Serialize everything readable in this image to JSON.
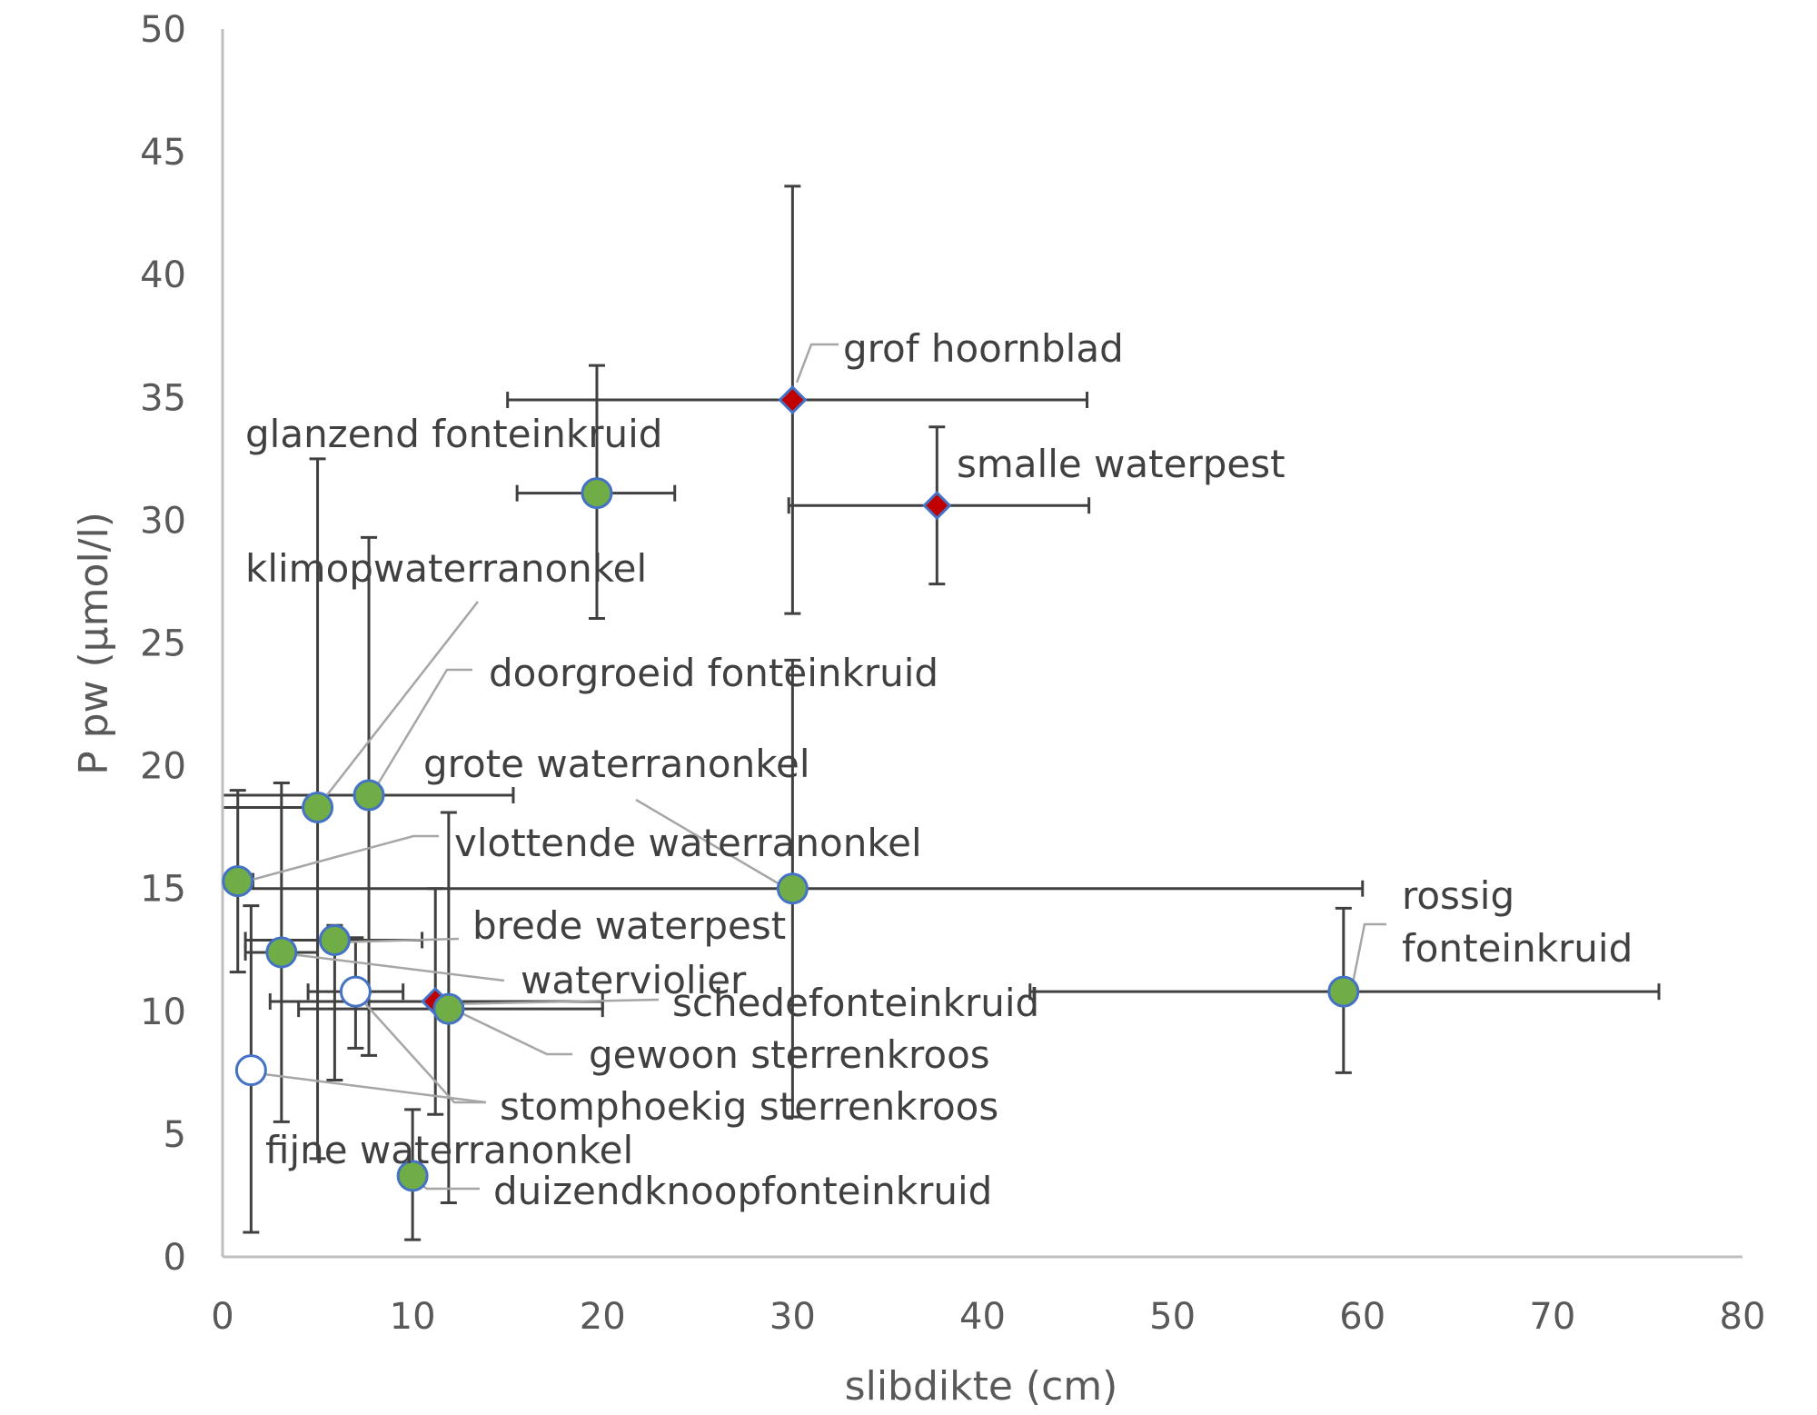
{
  "chart_data": {
    "type": "scatter",
    "xlabel": "slibdikte (cm)",
    "ylabel": "P pw (µmol/l)",
    "xlim": [
      0,
      80
    ],
    "ylim": [
      0,
      50
    ],
    "xticks": [
      "0",
      "10",
      "20",
      "30",
      "40",
      "50",
      "60",
      "70",
      "80"
    ],
    "yticks": [
      "0",
      "5",
      "10",
      "15",
      "20",
      "25",
      "30",
      "35",
      "40",
      "45",
      "50"
    ],
    "grid": false,
    "legend": "none",
    "colors": {
      "green_fill": "#70ad47",
      "red_fill": "#c00000",
      "marker_edge": "#4472c4",
      "errbar": "#404040"
    },
    "points": [
      {
        "label": "grof hoornblad",
        "x": 30,
        "y": 34.9,
        "x_err": [
          15,
          45.5
        ],
        "y_err": [
          26.2,
          43.6
        ],
        "marker": "diamond-red"
      },
      {
        "label": "smalle waterpest",
        "x": 37.6,
        "y": 30.6,
        "x_err": [
          29.8,
          45.6
        ],
        "y_err": [
          27.4,
          33.8
        ],
        "marker": "diamond-red"
      },
      {
        "label": "glanzend fonteinkruid",
        "x": 19.7,
        "y": 31.1,
        "x_err": [
          15.5,
          23.8
        ],
        "y_err": [
          26.0,
          36.3
        ],
        "marker": "circle-green"
      },
      {
        "label": "klimopwaterranonkel",
        "x": 5.0,
        "y": 18.3,
        "x_err": [
          0,
          5.0
        ],
        "y_err": [
          4.0,
          32.5
        ],
        "marker": "circle-green"
      },
      {
        "label": "doorgroeid fonteinkruid",
        "x": 7.7,
        "y": 18.8,
        "x_err": [
          0,
          15.3
        ],
        "y_err": [
          8.2,
          29.3
        ],
        "marker": "circle-green"
      },
      {
        "label": "grote waterranonkel",
        "x": 30,
        "y": 15.0,
        "x_err": [
          0,
          60
        ],
        "y_err": [
          5.7,
          24.3
        ],
        "marker": "circle-green"
      },
      {
        "label": "vlottende waterranonkel",
        "x": 0.8,
        "y": 15.3,
        "x_err": [
          0,
          1.6
        ],
        "y_err": [
          11.6,
          19.0
        ],
        "marker": "circle-green"
      },
      {
        "label": "rossig fonteinkruid",
        "x": 59,
        "y": 10.8,
        "x_err": [
          42.5,
          75.6
        ],
        "y_err": [
          7.5,
          14.2
        ],
        "marker": "circle-green"
      },
      {
        "label": "brede waterpest",
        "x": 5.9,
        "y": 12.9,
        "x_err": [
          1.2,
          10.5
        ],
        "y_err": [
          7.2,
          13.5
        ],
        "marker": "circle-green"
      },
      {
        "label": "waterviolier",
        "x": 3.1,
        "y": 12.4,
        "x_err": [
          1.2,
          5.0
        ],
        "y_err": [
          5.5,
          19.3
        ],
        "marker": "circle-green"
      },
      {
        "label": "schedefonteinkruid",
        "x": 11.2,
        "y": 10.4,
        "x_err": [
          2.5,
          20.0
        ],
        "y_err": [
          5.8,
          15.0
        ],
        "marker": "diamond-red"
      },
      {
        "label": "gewoon sterrenkroos",
        "x": 11.9,
        "y": 10.1,
        "x_err": [
          4.0,
          20.0
        ],
        "y_err": [
          2.2,
          18.1
        ],
        "marker": "circle-green"
      },
      {
        "label": "stomphoekig sterrenkroos",
        "x": 7.0,
        "y": 10.8,
        "x_err": [
          4.5,
          9.5
        ],
        "y_err": [
          8.5,
          13.0
        ],
        "marker": "circle-open"
      },
      {
        "label": "fijne waterranonkel",
        "x": 1.5,
        "y": 7.6,
        "x_err": [
          1.5,
          1.5
        ],
        "y_err": [
          1.0,
          14.3
        ],
        "marker": "circle-open"
      },
      {
        "label": "duizendknoopfonteinkruid",
        "x": 10.0,
        "y": 3.3,
        "x_err": [
          10.0,
          10.0
        ],
        "y_err": [
          0.7,
          6.0
        ],
        "marker": "circle-green"
      }
    ]
  }
}
